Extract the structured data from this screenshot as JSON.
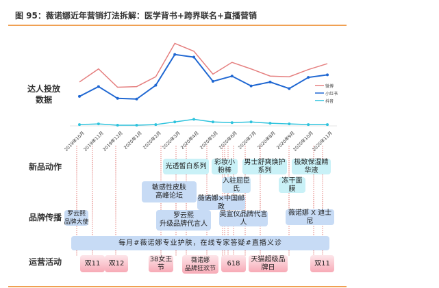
{
  "title": "图 95：薇诺娜近年营销打法拆解：医学背书+跨界联名+直播营销",
  "row_labels": {
    "kol": "达人投放\n数据",
    "new_product": "新品动作",
    "brand": "品牌传播",
    "operations": "运营活动"
  },
  "chart_data": {
    "type": "line",
    "title": "达人投放数据",
    "categories": [
      "2019年10月",
      "2019年11月",
      "2019年12月",
      "2020年1月",
      "2020年2月",
      "2020年3月",
      "2020年4月",
      "2020年5月",
      "2020年6月",
      "2020年7月",
      "2020年8月",
      "2020年9月",
      "2020年10月",
      "2020年11月"
    ],
    "series": [
      {
        "name": "微博",
        "color": "#e57f7f",
        "values": [
          67,
          87,
          59,
          60,
          75,
          126,
          114,
          79,
          97,
          87,
          76,
          75,
          86,
          95
        ]
      },
      {
        "name": "小红书",
        "color": "#1f67d2",
        "values": [
          45,
          60,
          42,
          41,
          62,
          109,
          105,
          68,
          76,
          61,
          67,
          57,
          74,
          78
        ]
      },
      {
        "name": "抖音",
        "color": "#2ec3dd",
        "values": [
          2,
          3,
          1,
          1,
          2,
          6,
          10,
          6,
          5,
          6,
          4,
          3,
          2,
          2
        ]
      }
    ],
    "ylim": [
      0,
      140
    ],
    "grid": false,
    "legend": "right"
  },
  "new_product": [
    "光透皙白系列",
    "彩妆小粉棒",
    "男士舒爽焕护系列",
    "极致保湿精华液",
    "冻干面膜",
    "入驻屈臣氏"
  ],
  "brand": [
    "敏感性皮肤\n高峰论坛",
    "薇诺娜×中国邮政",
    "罗云熙\n品牌大使",
    "罗云熙\n升级品牌代言人",
    "吴宣仪品牌代言人",
    "薇诺娜 X 迪士尼"
  ],
  "live": "每月#薇诺娜专业护肤，在线专家答疑#直播义诊",
  "operations": [
    "双11",
    "双12",
    "38女王节",
    "薇诺娜\n品牌狂欢节",
    "618",
    "天猫超级品牌日",
    "双11"
  ]
}
